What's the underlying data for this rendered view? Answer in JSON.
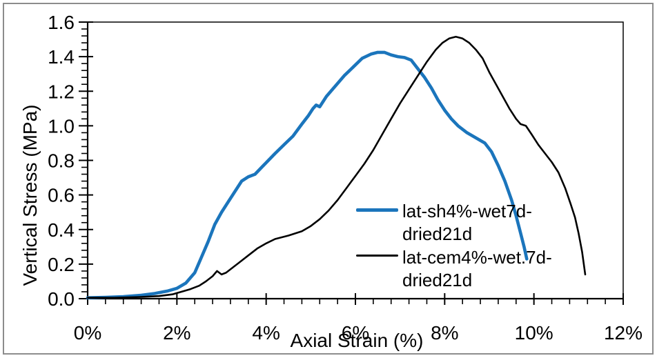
{
  "frame": {
    "background": "#FFFFFF",
    "border_color": "#8C8C8C"
  },
  "axes": {
    "x_title": "Axial Strain (%)",
    "y_title": "Vertical Stress (MPa)"
  },
  "legend": {
    "position": "inside-right-middle",
    "frame": "none",
    "items": [
      {
        "name": "lat-sh4%-wet7d-dried21d",
        "lines": [
          "lat-sh4%-wet7d-",
          "dried21d"
        ],
        "color": "#1B75BC"
      },
      {
        "name": "lat-cem4%-wet.7d-dried21d",
        "lines": [
          "lat-cem4%-wet.7d-",
          "dried21d"
        ],
        "color": "#000000"
      }
    ]
  },
  "chart_data": {
    "type": "line",
    "title": "",
    "xlabel": "Axial Strain (%)",
    "ylabel": "Vertical Stress (MPa)",
    "xlim": [
      0,
      12
    ],
    "ylim": [
      0,
      1.6
    ],
    "x_tick_values": [
      0,
      2,
      4,
      6,
      8,
      10,
      12
    ],
    "x_tick_labels": [
      "0%",
      "2%",
      "4%",
      "6%",
      "8%",
      "10%",
      "12%"
    ],
    "x_minor_step": 0.4,
    "y_tick_values": [
      0,
      0.2,
      0.4,
      0.6,
      0.8,
      1.0,
      1.2,
      1.4,
      1.6
    ],
    "y_tick_labels": [
      "0.0",
      "0.2",
      "0.4",
      "0.6",
      "0.8",
      "1.0",
      "1.2",
      "1.4",
      "1.6"
    ],
    "y_minor_step": 0.04,
    "grid": false,
    "legend_position": "inside right, no border",
    "series": [
      {
        "name": "lat-sh4%-wet7d-dried21d",
        "color": "#1B75BC",
        "stroke_width": 4.6,
        "peak": {
          "strain_pct": 6.5,
          "stress_mpa": 1.42
        },
        "points": [
          [
            0,
            0.005
          ],
          [
            0.4,
            0.008
          ],
          [
            0.8,
            0.012
          ],
          [
            1.2,
            0.02
          ],
          [
            1.5,
            0.03
          ],
          [
            1.8,
            0.045
          ],
          [
            2.0,
            0.06
          ],
          [
            2.2,
            0.09
          ],
          [
            2.4,
            0.15
          ],
          [
            2.55,
            0.24
          ],
          [
            2.7,
            0.33
          ],
          [
            2.85,
            0.43
          ],
          [
            3.0,
            0.5
          ],
          [
            3.15,
            0.56
          ],
          [
            3.3,
            0.62
          ],
          [
            3.45,
            0.68
          ],
          [
            3.6,
            0.705
          ],
          [
            3.75,
            0.72
          ],
          [
            3.9,
            0.76
          ],
          [
            4.05,
            0.8
          ],
          [
            4.2,
            0.84
          ],
          [
            4.4,
            0.89
          ],
          [
            4.6,
            0.94
          ],
          [
            4.8,
            1.01
          ],
          [
            4.95,
            1.06
          ],
          [
            5.05,
            1.1
          ],
          [
            5.12,
            1.12
          ],
          [
            5.2,
            1.11
          ],
          [
            5.35,
            1.17
          ],
          [
            5.55,
            1.23
          ],
          [
            5.75,
            1.29
          ],
          [
            5.95,
            1.34
          ],
          [
            6.15,
            1.39
          ],
          [
            6.35,
            1.415
          ],
          [
            6.5,
            1.425
          ],
          [
            6.65,
            1.425
          ],
          [
            6.8,
            1.41
          ],
          [
            6.95,
            1.4
          ],
          [
            7.1,
            1.395
          ],
          [
            7.25,
            1.38
          ],
          [
            7.4,
            1.33
          ],
          [
            7.55,
            1.28
          ],
          [
            7.7,
            1.22
          ],
          [
            7.85,
            1.15
          ],
          [
            8.0,
            1.09
          ],
          [
            8.15,
            1.04
          ],
          [
            8.3,
            1.0
          ],
          [
            8.5,
            0.96
          ],
          [
            8.7,
            0.93
          ],
          [
            8.9,
            0.9
          ],
          [
            9.05,
            0.85
          ],
          [
            9.2,
            0.77
          ],
          [
            9.35,
            0.68
          ],
          [
            9.5,
            0.57
          ],
          [
            9.6,
            0.48
          ],
          [
            9.7,
            0.38
          ],
          [
            9.78,
            0.3
          ],
          [
            9.84,
            0.23
          ]
        ]
      },
      {
        "name": "lat-cem4%-wet.7d-dried21d",
        "color": "#000000",
        "stroke_width": 2.6,
        "peak": {
          "strain_pct": 8.3,
          "stress_mpa": 1.51
        },
        "points": [
          [
            0,
            0.005
          ],
          [
            0.6,
            0.005
          ],
          [
            1.2,
            0.01
          ],
          [
            1.6,
            0.015
          ],
          [
            1.9,
            0.025
          ],
          [
            2.1,
            0.04
          ],
          [
            2.3,
            0.055
          ],
          [
            2.5,
            0.075
          ],
          [
            2.65,
            0.1
          ],
          [
            2.8,
            0.13
          ],
          [
            2.9,
            0.16
          ],
          [
            3.0,
            0.14
          ],
          [
            3.1,
            0.15
          ],
          [
            3.25,
            0.18
          ],
          [
            3.4,
            0.21
          ],
          [
            3.6,
            0.25
          ],
          [
            3.8,
            0.29
          ],
          [
            4.0,
            0.32
          ],
          [
            4.2,
            0.345
          ],
          [
            4.5,
            0.365
          ],
          [
            4.8,
            0.39
          ],
          [
            5.0,
            0.42
          ],
          [
            5.2,
            0.46
          ],
          [
            5.4,
            0.51
          ],
          [
            5.6,
            0.57
          ],
          [
            5.8,
            0.64
          ],
          [
            6.0,
            0.71
          ],
          [
            6.2,
            0.78
          ],
          [
            6.4,
            0.86
          ],
          [
            6.6,
            0.95
          ],
          [
            6.8,
            1.04
          ],
          [
            7.0,
            1.13
          ],
          [
            7.2,
            1.21
          ],
          [
            7.4,
            1.29
          ],
          [
            7.6,
            1.37
          ],
          [
            7.8,
            1.44
          ],
          [
            7.95,
            1.48
          ],
          [
            8.1,
            1.505
          ],
          [
            8.25,
            1.515
          ],
          [
            8.4,
            1.505
          ],
          [
            8.55,
            1.48
          ],
          [
            8.7,
            1.44
          ],
          [
            8.85,
            1.39
          ],
          [
            9.0,
            1.31
          ],
          [
            9.15,
            1.24
          ],
          [
            9.3,
            1.17
          ],
          [
            9.45,
            1.1
          ],
          [
            9.6,
            1.04
          ],
          [
            9.7,
            1.01
          ],
          [
            9.82,
            1.0
          ],
          [
            9.95,
            0.95
          ],
          [
            10.1,
            0.89
          ],
          [
            10.25,
            0.84
          ],
          [
            10.4,
            0.79
          ],
          [
            10.55,
            0.73
          ],
          [
            10.7,
            0.64
          ],
          [
            10.82,
            0.55
          ],
          [
            10.92,
            0.47
          ],
          [
            11.0,
            0.38
          ],
          [
            11.08,
            0.27
          ],
          [
            11.15,
            0.14
          ]
        ]
      }
    ]
  }
}
